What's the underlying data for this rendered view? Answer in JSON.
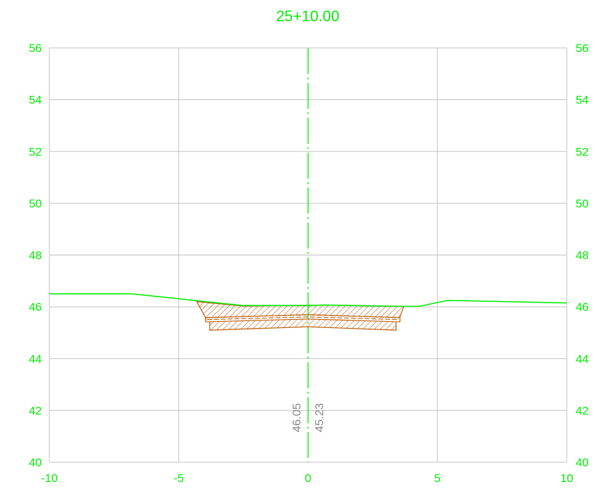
{
  "chart_data": {
    "type": "line",
    "title": "25+10.00",
    "xlabel": "",
    "ylabel": "",
    "xlim": [
      -10,
      10
    ],
    "ylim": [
      40,
      56
    ],
    "x_ticks": [
      "-10",
      "-5",
      "0",
      "5",
      "10"
    ],
    "y_ticks": [
      "40",
      "42",
      "44",
      "46",
      "48",
      "50",
      "52",
      "54",
      "56"
    ],
    "grid": true,
    "centerline_x": 0,
    "elevation_labels": [
      "46.05",
      "45.23"
    ],
    "colors": {
      "ground": "#00ee00",
      "text": "#00ee00",
      "grid": "#c0c0c0",
      "section": "#c06010",
      "elevation_label": "#888888"
    },
    "series": [
      {
        "name": "",
        "x": [
          -10,
          -6.8,
          -4.6,
          -2.5,
          0,
          0.6,
          3.7,
          4.3,
          5.4,
          10
        ],
        "y": [
          46.5,
          46.5,
          46.27,
          46.05,
          46.05,
          46.07,
          46.02,
          46.02,
          46.25,
          46.15
        ]
      }
    ],
    "section_outer": {
      "x": [
        -4.3,
        -3.97,
        -3.95,
        -3.8,
        -3.8,
        0,
        3.4,
        3.4,
        3.55,
        3.55,
        3.7,
        0.6,
        -2.5
      ],
      "y": [
        46.2,
        45.6,
        45.45,
        45.45,
        45.1,
        45.23,
        45.1,
        45.45,
        45.45,
        45.6,
        46.02,
        46.07,
        46.03
      ]
    },
    "section_layers": [
      {
        "x": [
          -3.95,
          0,
          3.55,
          3.55,
          0,
          -3.95
        ],
        "y": [
          45.58,
          45.7,
          45.58,
          45.42,
          45.53,
          45.42
        ]
      }
    ],
    "layer_lines_y": [
      45.59,
      45.51
    ]
  }
}
